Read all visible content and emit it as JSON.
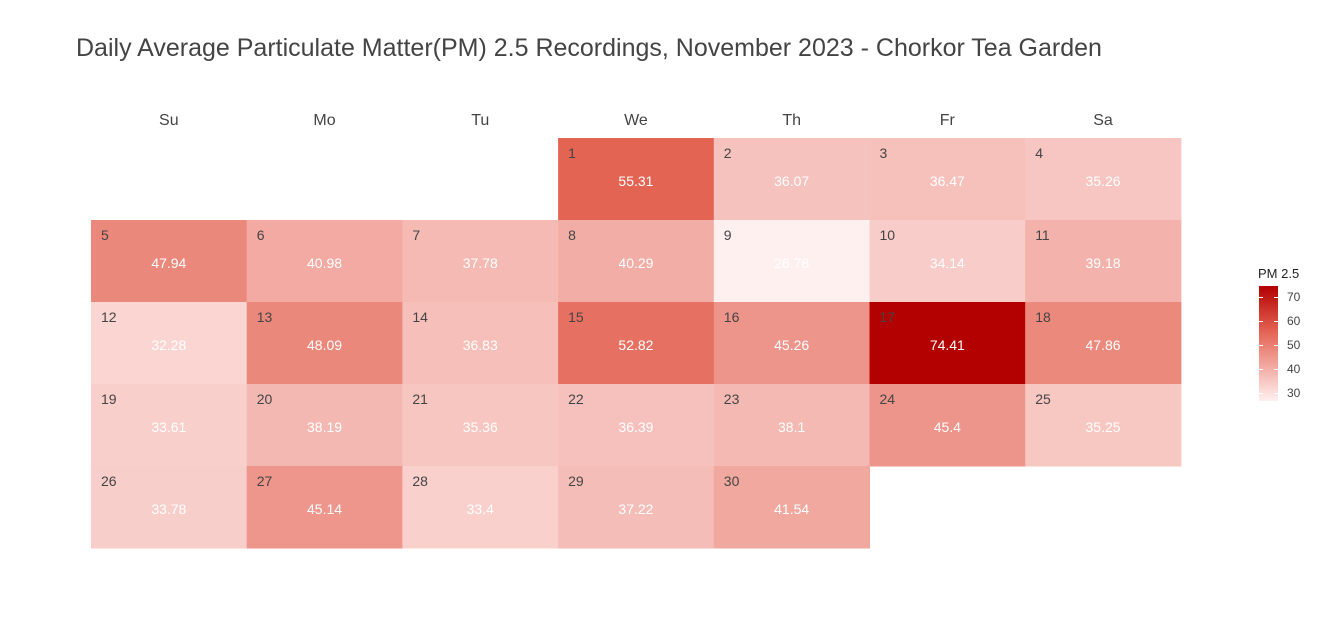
{
  "chart_data": {
    "type": "heatmap",
    "title": "Daily Average Particulate Matter(PM) 2.5 Recordings, November 2023 - Chorkor Tea Garden",
    "weekdays": [
      "Su",
      "Mo",
      "Tu",
      "We",
      "Th",
      "Fr",
      "Sa"
    ],
    "first_weekday_index": 3,
    "days": [
      1,
      2,
      3,
      4,
      5,
      6,
      7,
      8,
      9,
      10,
      11,
      12,
      13,
      14,
      15,
      16,
      17,
      18,
      19,
      20,
      21,
      22,
      23,
      24,
      25,
      26,
      27,
      28,
      29,
      30
    ],
    "values": [
      55.31,
      36.07,
      36.47,
      35.26,
      47.94,
      40.98,
      37.78,
      40.29,
      26.78,
      34.14,
      39.18,
      32.28,
      48.09,
      36.83,
      52.82,
      45.26,
      74.41,
      47.86,
      33.61,
      38.19,
      35.36,
      36.39,
      38.1,
      45.4,
      35.25,
      33.78,
      45.14,
      33.4,
      37.22,
      41.54
    ],
    "value_labels": [
      "55.31",
      "36.07",
      "36.47",
      "35.26",
      "47.94",
      "40.98",
      "37.78",
      "40.29",
      "26.78",
      "34.14",
      "39.18",
      "32.28",
      "48.09",
      "36.83",
      "52.82",
      "45.26",
      "74.41",
      "47.86",
      "33.61",
      "38.19",
      "35.36",
      "36.39",
      "38.1",
      "45.4",
      "35.25",
      "33.78",
      "45.14",
      "33.4",
      "37.22",
      "41.54"
    ],
    "legend": {
      "title": "PM 2.5",
      "ticks": [
        70,
        60,
        50,
        40,
        30
      ],
      "tick_labels": [
        "70",
        "60",
        "50",
        "40",
        "30"
      ],
      "range": [
        26.78,
        74.41
      ],
      "color_low": "#FFF0F0",
      "color_high": "#B30000",
      "placement": "right"
    }
  }
}
